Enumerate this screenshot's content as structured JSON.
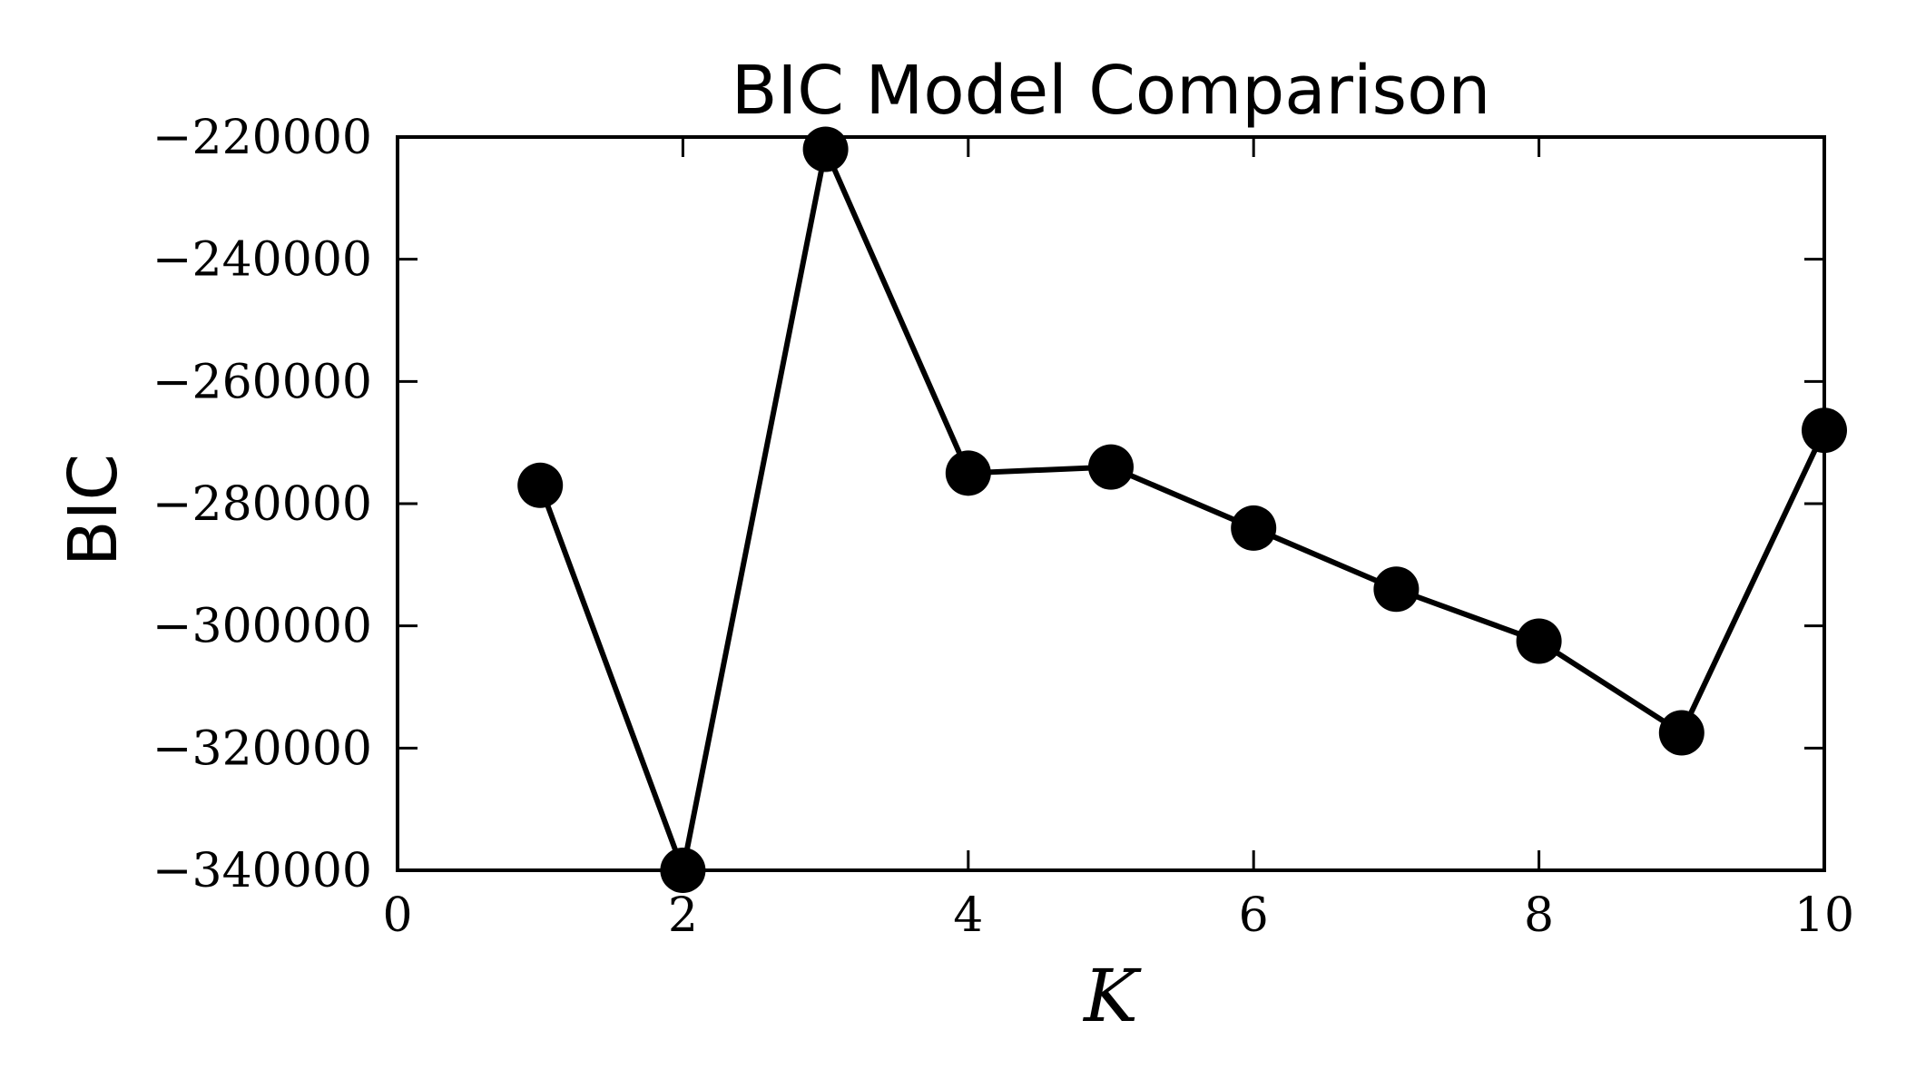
{
  "chart_data": {
    "type": "line",
    "title": "BIC Model Comparison",
    "xlabel": "K",
    "ylabel": "BIC",
    "xlim": [
      0,
      10
    ],
    "ylim": [
      -340000,
      -220000
    ],
    "xticks": [
      0,
      2,
      4,
      6,
      8,
      10
    ],
    "xtick_labels": [
      "0",
      "2",
      "4",
      "6",
      "8",
      "10"
    ],
    "yticks": [
      -220000,
      -240000,
      -260000,
      -280000,
      -300000,
      -320000,
      -340000
    ],
    "ytick_labels": [
      "−220000",
      "−240000",
      "−260000",
      "−280000",
      "−300000",
      "−320000",
      "−340000"
    ],
    "grid": false,
    "series": [
      {
        "name": "BIC",
        "color": "#000000",
        "marker": "circle",
        "x": [
          1,
          2,
          3,
          4,
          5,
          6,
          7,
          8,
          9,
          10
        ],
        "y": [
          -277000,
          -340000,
          -222000,
          -275000,
          -274000,
          -284000,
          -294000,
          -302500,
          -317500,
          -268000
        ]
      }
    ]
  }
}
